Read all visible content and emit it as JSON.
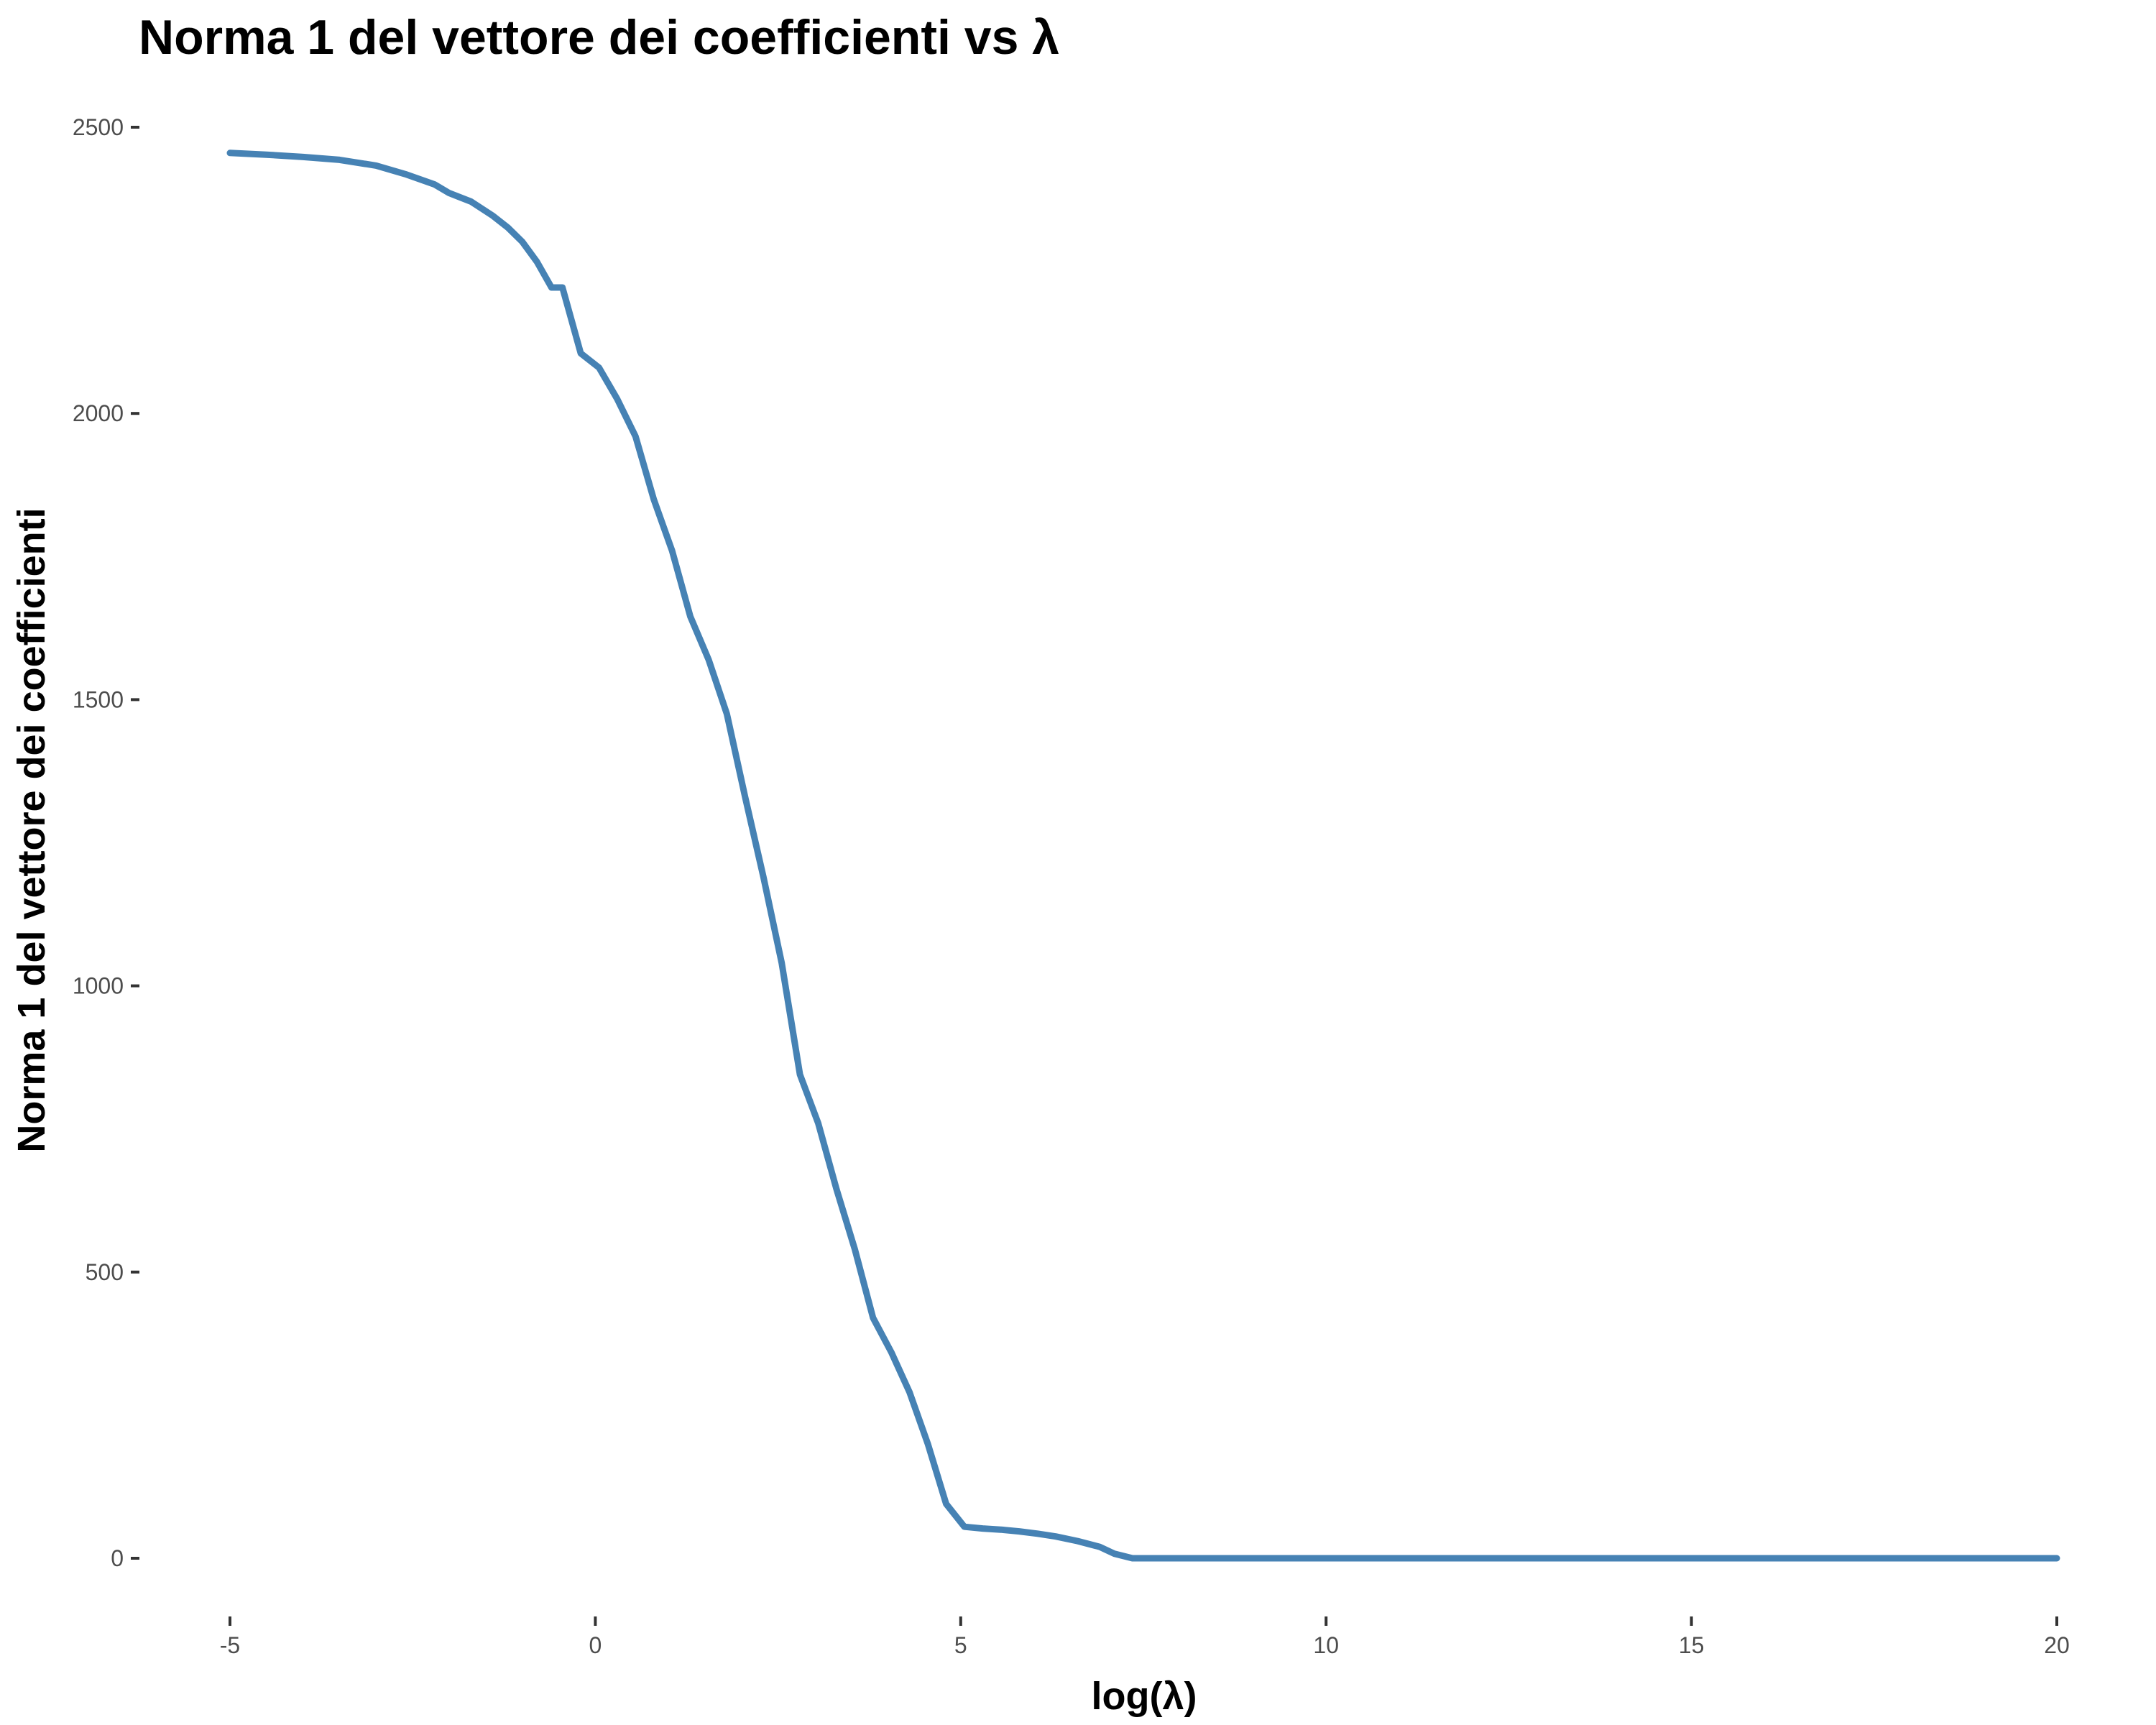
{
  "chart_data": {
    "type": "line",
    "title": "Norma 1 del vettore dei coefficienti vs λ",
    "xlabel": "log(λ)",
    "ylabel": "Norma 1 del vettore dei coefficienti",
    "xlim": [
      -5,
      20
    ],
    "ylim": [
      0,
      2500
    ],
    "x_ticks": [
      -5,
      0,
      5,
      10,
      15,
      20
    ],
    "y_ticks": [
      0,
      500,
      1000,
      1500,
      2000,
      2500
    ],
    "grid": false,
    "legend": "none",
    "color": "#4682b4",
    "series": [
      {
        "x": [
          -5.0,
          -4.5,
          -4.0,
          -3.5,
          -3.0,
          -2.6,
          -2.2,
          -2.0,
          -1.7,
          -1.4,
          -1.2,
          -1.0,
          -0.8,
          -0.6,
          -0.45,
          -0.2,
          0.05,
          0.3,
          0.55,
          0.8,
          1.05,
          1.3,
          1.55,
          1.8,
          2.05,
          2.3,
          2.55,
          2.8,
          3.05,
          3.3,
          3.55,
          3.8,
          4.05,
          4.3,
          4.55,
          4.8,
          5.05,
          5.3,
          5.55,
          5.8,
          6.05,
          6.3,
          6.6,
          6.9,
          7.1,
          7.35,
          7.6,
          8.0,
          10.0,
          15.0,
          20.0
        ],
        "y": [
          2455,
          2452,
          2448,
          2443,
          2433,
          2418,
          2400,
          2385,
          2370,
          2345,
          2325,
          2300,
          2265,
          2220,
          2220,
          2105,
          2080,
          2025,
          1960,
          1850,
          1760,
          1645,
          1570,
          1475,
          1330,
          1190,
          1040,
          845,
          760,
          645,
          540,
          420,
          360,
          290,
          200,
          95,
          55,
          52,
          50,
          47,
          43,
          38,
          30,
          20,
          8,
          0,
          0,
          0,
          0,
          0,
          0
        ]
      }
    ]
  }
}
